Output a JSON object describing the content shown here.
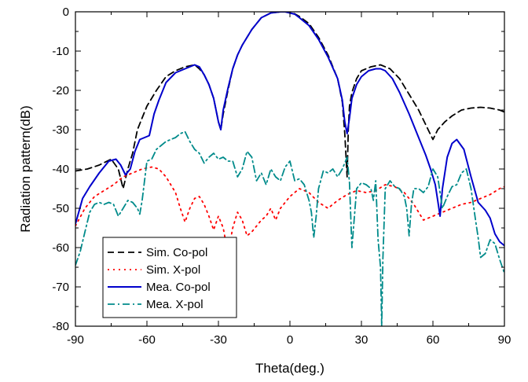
{
  "chart_data": {
    "type": "line",
    "title": "",
    "xlabel": "Theta(deg.)",
    "ylabel": "Radiation pattern(dB)",
    "xlim": [
      -90,
      90
    ],
    "ylim": [
      -80,
      0
    ],
    "xticks": [
      -90,
      -60,
      -30,
      0,
      30,
      60,
      90
    ],
    "yticks": [
      0,
      -10,
      -20,
      -30,
      -40,
      -50,
      -60,
      -70,
      -80
    ],
    "grid": false,
    "legend_position": "bottom-left",
    "series": [
      {
        "name": "Sim. Co-pol",
        "color": "#000000",
        "dash": "dash",
        "x": [
          -90,
          -85,
          -80,
          -75,
          -72,
          -70,
          -68,
          -66,
          -64,
          -62,
          -60,
          -58,
          -56,
          -52,
          -48,
          -44,
          -40,
          -38,
          -36,
          -34,
          -32,
          -30,
          -29,
          -28,
          -26,
          -24,
          -22,
          -20,
          -16,
          -12,
          -8,
          -4,
          -2,
          0,
          2,
          4,
          8,
          12,
          16,
          20,
          22,
          23,
          24,
          24.5,
          25,
          26,
          28,
          30,
          34,
          38,
          42,
          46,
          50,
          54,
          58,
          60,
          62,
          65,
          68,
          72,
          76,
          80,
          84,
          88,
          90
        ],
        "y": [
          -40.5,
          -40.0,
          -39.0,
          -37.5,
          -40.0,
          -45.0,
          -40.0,
          -36.0,
          -30.0,
          -27.0,
          -24.0,
          -22.0,
          -20.0,
          -16.5,
          -15.0,
          -14.0,
          -13.5,
          -14.5,
          -16.0,
          -18.5,
          -22.0,
          -28.0,
          -30.0,
          -26.0,
          -20.0,
          -14.5,
          -11.0,
          -8.5,
          -4.5,
          -1.5,
          -0.3,
          0.0,
          0.0,
          -0.2,
          -0.5,
          -1.2,
          -3.0,
          -6.5,
          -11.0,
          -17.0,
          -23.0,
          -31.0,
          -42.0,
          -30.0,
          -24.0,
          -20.5,
          -17.0,
          -15.0,
          -14.0,
          -13.5,
          -14.5,
          -17.0,
          -21.0,
          -25.0,
          -30.0,
          -32.5,
          -30.0,
          -28.0,
          -26.5,
          -25.0,
          -24.5,
          -24.3,
          -24.5,
          -25.0,
          -25.5
        ]
      },
      {
        "name": "Sim. X-pol",
        "color": "#ff0000",
        "dash": "dot",
        "x": [
          -90,
          -86,
          -82,
          -78,
          -74,
          -70,
          -66,
          -62,
          -58,
          -55,
          -52,
          -48,
          -46,
          -44,
          -42,
          -40,
          -38,
          -36,
          -34,
          -32,
          -30,
          -28,
          -26,
          -24,
          -22,
          -20,
          -18,
          -16,
          -12,
          -10,
          -8,
          -6,
          -4,
          0,
          4,
          8,
          12,
          16,
          20,
          24,
          28,
          32,
          36,
          40,
          44,
          48,
          52,
          56,
          60,
          64,
          68,
          72,
          76,
          80,
          84,
          88,
          90
        ],
        "y": [
          -54.5,
          -50.0,
          -47.0,
          -45.5,
          -44.0,
          -42.0,
          -41.0,
          -40.0,
          -39.5,
          -40.0,
          -42.0,
          -46.0,
          -50.0,
          -53.5,
          -50.0,
          -47.5,
          -47.0,
          -49.0,
          -52.0,
          -55.5,
          -52.0,
          -55.0,
          -61.5,
          -55.0,
          -51.0,
          -53.0,
          -57.0,
          -56.0,
          -53.0,
          -52.0,
          -50.0,
          -53.0,
          -50.0,
          -47.0,
          -45.0,
          -46.0,
          -48.5,
          -50.0,
          -48.0,
          -46.5,
          -45.5,
          -46.0,
          -45.5,
          -44.0,
          -44.5,
          -46.0,
          -49.0,
          -53.0,
          -52.0,
          -51.0,
          -50.0,
          -49.0,
          -48.5,
          -47.5,
          -46.5,
          -45.0,
          -44.5
        ]
      },
      {
        "name": "Mea. Co-pol",
        "color": "#0000cc",
        "dash": "solid",
        "x": [
          -90,
          -87,
          -84,
          -80,
          -76,
          -73,
          -71,
          -69,
          -67,
          -65,
          -63,
          -61,
          -59,
          -57,
          -55,
          -52,
          -48,
          -44,
          -40,
          -38,
          -36,
          -34,
          -32,
          -30,
          -29,
          -28,
          -26,
          -24,
          -22,
          -20,
          -16,
          -12,
          -8,
          -4,
          -2,
          0,
          2,
          4,
          8,
          12,
          16,
          20,
          22,
          23,
          24,
          25,
          26,
          28,
          30,
          33,
          36,
          38,
          40,
          43,
          46,
          50,
          54,
          57,
          59,
          61,
          62,
          63,
          64,
          66,
          68,
          70,
          73,
          76,
          79,
          82,
          84,
          86,
          88,
          90
        ],
        "y": [
          -54.0,
          -47.5,
          -44.5,
          -41.0,
          -38.0,
          -37.5,
          -39.0,
          -41.5,
          -40.0,
          -35.5,
          -32.5,
          -32.0,
          -31.5,
          -26.0,
          -22.5,
          -18.0,
          -15.5,
          -14.5,
          -13.5,
          -14.0,
          -16.0,
          -18.5,
          -22.0,
          -28.0,
          -30.0,
          -25.0,
          -19.5,
          -14.5,
          -11.0,
          -8.5,
          -4.5,
          -1.5,
          -0.3,
          0.0,
          0.0,
          -0.3,
          -0.6,
          -1.5,
          -3.5,
          -7.0,
          -11.5,
          -17.0,
          -22.5,
          -28.0,
          -31.0,
          -27.0,
          -22.0,
          -18.5,
          -16.5,
          -15.0,
          -14.5,
          -14.5,
          -15.0,
          -17.0,
          -20.5,
          -26.0,
          -32.0,
          -36.5,
          -40.0,
          -44.0,
          -48.0,
          -52.0,
          -45.0,
          -37.0,
          -33.5,
          -32.5,
          -35.0,
          -42.0,
          -48.5,
          -50.5,
          -52.5,
          -56.5,
          -58.5,
          -59.5
        ]
      },
      {
        "name": "Mea. X-pol",
        "color": "#008b8b",
        "dash": "dashdot",
        "x": [
          -90,
          -88,
          -86,
          -84,
          -82,
          -80,
          -78,
          -76,
          -74,
          -72,
          -70,
          -68,
          -66,
          -64,
          -63,
          -62,
          -60,
          -58,
          -56,
          -54,
          -52,
          -50,
          -48,
          -46,
          -44,
          -42,
          -40,
          -38,
          -36,
          -34,
          -32,
          -30,
          -28,
          -26,
          -24,
          -22,
          -20,
          -18,
          -16,
          -14,
          -12,
          -10,
          -8,
          -6,
          -4,
          -2,
          0,
          2,
          4,
          6,
          8,
          9,
          10,
          11,
          12,
          14,
          16,
          18,
          20,
          22,
          24,
          25,
          26,
          28,
          30,
          32,
          34,
          35,
          36,
          37,
          38,
          38.5,
          39,
          40,
          42,
          44,
          46,
          48,
          49,
          50,
          51,
          52,
          54,
          56,
          58,
          60,
          62,
          64,
          66,
          68,
          70,
          72,
          74,
          76,
          78,
          79,
          80,
          82,
          84,
          86,
          88,
          90
        ],
        "y": [
          -64.5,
          -61.0,
          -56.0,
          -51.0,
          -49.0,
          -48.5,
          -49.0,
          -48.5,
          -49.0,
          -52.0,
          -50.0,
          -48.0,
          -48.5,
          -50.0,
          -51.5,
          -48.0,
          -38.0,
          -37.5,
          -35.0,
          -34.0,
          -33.0,
          -32.5,
          -32.0,
          -31.0,
          -30.5,
          -33.0,
          -35.0,
          -36.0,
          -38.5,
          -37.0,
          -36.0,
          -37.5,
          -37.0,
          -38.0,
          -38.0,
          -42.0,
          -40.0,
          -35.5,
          -37.0,
          -43.0,
          -41.0,
          -44.0,
          -40.0,
          -42.0,
          -43.0,
          -39.5,
          -38.0,
          -43.0,
          -42.5,
          -44.0,
          -48.0,
          -51.0,
          -57.5,
          -52.0,
          -45.0,
          -40.5,
          -41.0,
          -40.0,
          -42.0,
          -40.0,
          -37.0,
          -43.5,
          -60.0,
          -45.0,
          -43.5,
          -44.0,
          -45.0,
          -48.0,
          -43.0,
          -58.0,
          -65.0,
          -80.0,
          -63.0,
          -45.0,
          -43.0,
          -44.5,
          -45.0,
          -47.0,
          -50.0,
          -57.0,
          -49.0,
          -45.0,
          -45.0,
          -46.0,
          -44.5,
          -40.0,
          -42.0,
          -50.0,
          -47.0,
          -44.5,
          -44.0,
          -41.0,
          -40.0,
          -45.0,
          -53.5,
          -57.5,
          -62.5,
          -61.5,
          -58.0,
          -59.0,
          -63.0,
          -66.5
        ]
      }
    ]
  }
}
